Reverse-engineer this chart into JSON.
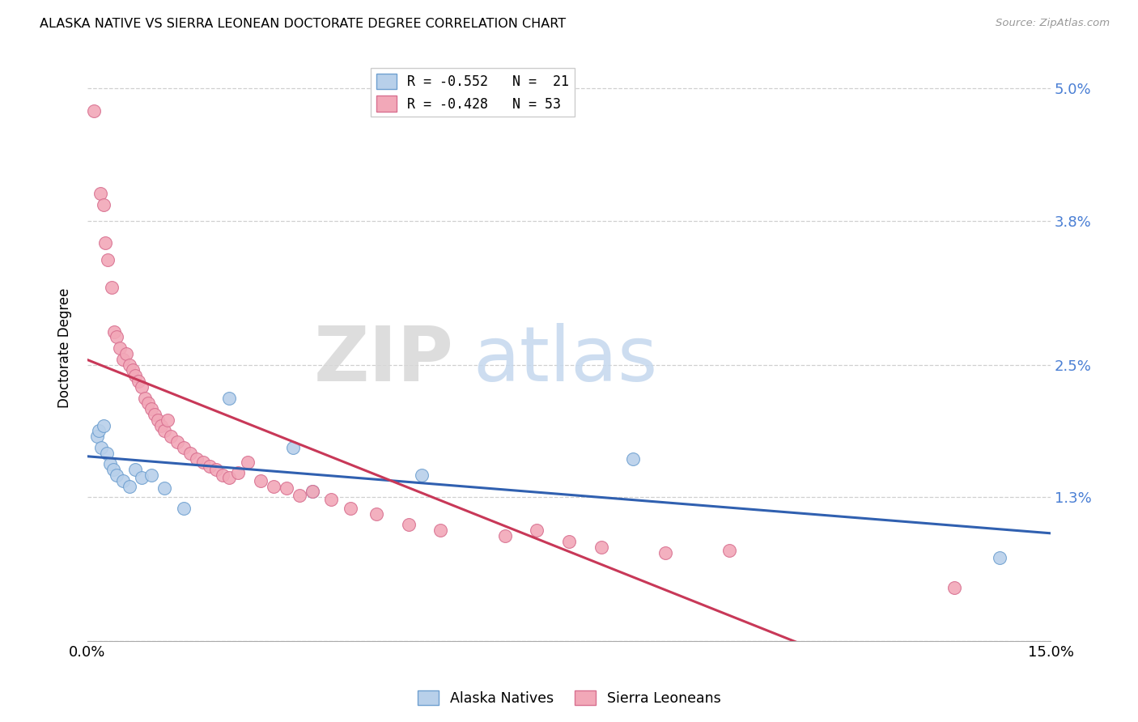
{
  "title": "ALASKA NATIVE VS SIERRA LEONEAN DOCTORATE DEGREE CORRELATION CHART",
  "source": "Source: ZipAtlas.com",
  "ylabel": "Doctorate Degree",
  "xlim": [
    0.0,
    15.0
  ],
  "ylim": [
    0.0,
    5.3
  ],
  "yticks": [
    0.0,
    1.3,
    2.5,
    3.8,
    5.0
  ],
  "ytick_labels": [
    "",
    "1.3%",
    "2.5%",
    "3.8%",
    "5.0%"
  ],
  "xticks": [
    0.0,
    3.0,
    6.0,
    9.0,
    12.0,
    15.0
  ],
  "xtick_labels": [
    "0.0%",
    "",
    "",
    "",
    "",
    "15.0%"
  ],
  "alaska_color": "#b8d0ea",
  "alaska_edge": "#6fa0d0",
  "sierra_color": "#f2a8b8",
  "sierra_edge": "#d87090",
  "alaska_line_color": "#3060b0",
  "sierra_line_color": "#c83858",
  "legend_label1": "R = -0.552   N =  21",
  "legend_label2": "R = -0.428   N = 53",
  "bottom_label1": "Alaska Natives",
  "bottom_label2": "Sierra Leoneans",
  "alaska_x": [
    0.15,
    0.18,
    0.22,
    0.25,
    0.3,
    0.35,
    0.4,
    0.45,
    0.55,
    0.65,
    0.75,
    0.85,
    1.0,
    1.2,
    1.5,
    2.2,
    3.2,
    3.5,
    5.2,
    8.5,
    14.2
  ],
  "alaska_y": [
    1.85,
    1.9,
    1.75,
    1.95,
    1.7,
    1.6,
    1.55,
    1.5,
    1.45,
    1.4,
    1.55,
    1.48,
    1.5,
    1.38,
    1.2,
    2.2,
    1.75,
    1.35,
    1.5,
    1.65,
    0.75
  ],
  "sierra_x": [
    0.1,
    0.2,
    0.25,
    0.28,
    0.32,
    0.38,
    0.42,
    0.45,
    0.5,
    0.55,
    0.6,
    0.65,
    0.7,
    0.75,
    0.8,
    0.85,
    0.9,
    0.95,
    1.0,
    1.05,
    1.1,
    1.15,
    1.2,
    1.25,
    1.3,
    1.4,
    1.5,
    1.6,
    1.7,
    1.8,
    1.9,
    2.0,
    2.1,
    2.2,
    2.35,
    2.5,
    2.7,
    2.9,
    3.1,
    3.3,
    3.5,
    3.8,
    4.1,
    4.5,
    5.0,
    5.5,
    6.5,
    7.0,
    7.5,
    8.0,
    9.0,
    10.0,
    13.5
  ],
  "sierra_y": [
    4.8,
    4.05,
    3.95,
    3.6,
    3.45,
    3.2,
    2.8,
    2.75,
    2.65,
    2.55,
    2.6,
    2.5,
    2.45,
    2.4,
    2.35,
    2.3,
    2.2,
    2.15,
    2.1,
    2.05,
    2.0,
    1.95,
    1.9,
    2.0,
    1.85,
    1.8,
    1.75,
    1.7,
    1.65,
    1.62,
    1.58,
    1.55,
    1.5,
    1.48,
    1.52,
    1.62,
    1.45,
    1.4,
    1.38,
    1.32,
    1.35,
    1.28,
    1.2,
    1.15,
    1.05,
    1.0,
    0.95,
    1.0,
    0.9,
    0.85,
    0.8,
    0.82,
    0.48
  ]
}
